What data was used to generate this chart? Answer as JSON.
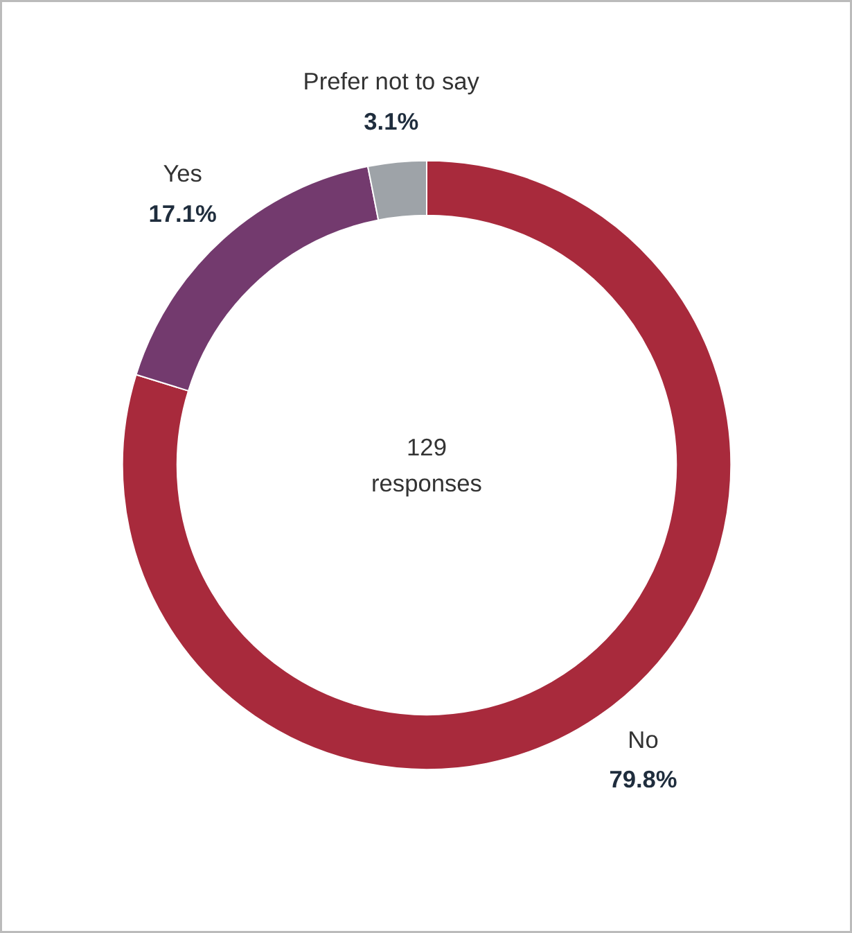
{
  "chart_data": {
    "type": "donut",
    "categories": [
      "No",
      "Yes",
      "Prefer not to say"
    ],
    "values": [
      79.8,
      17.1,
      3.1
    ],
    "colors": [
      "#a82a3c",
      "#733a6e",
      "#9ea3a8"
    ],
    "value_labels": [
      "79.8%",
      "17.1%",
      "3.1%"
    ],
    "annotations": [
      "129\nresponses"
    ]
  }
}
